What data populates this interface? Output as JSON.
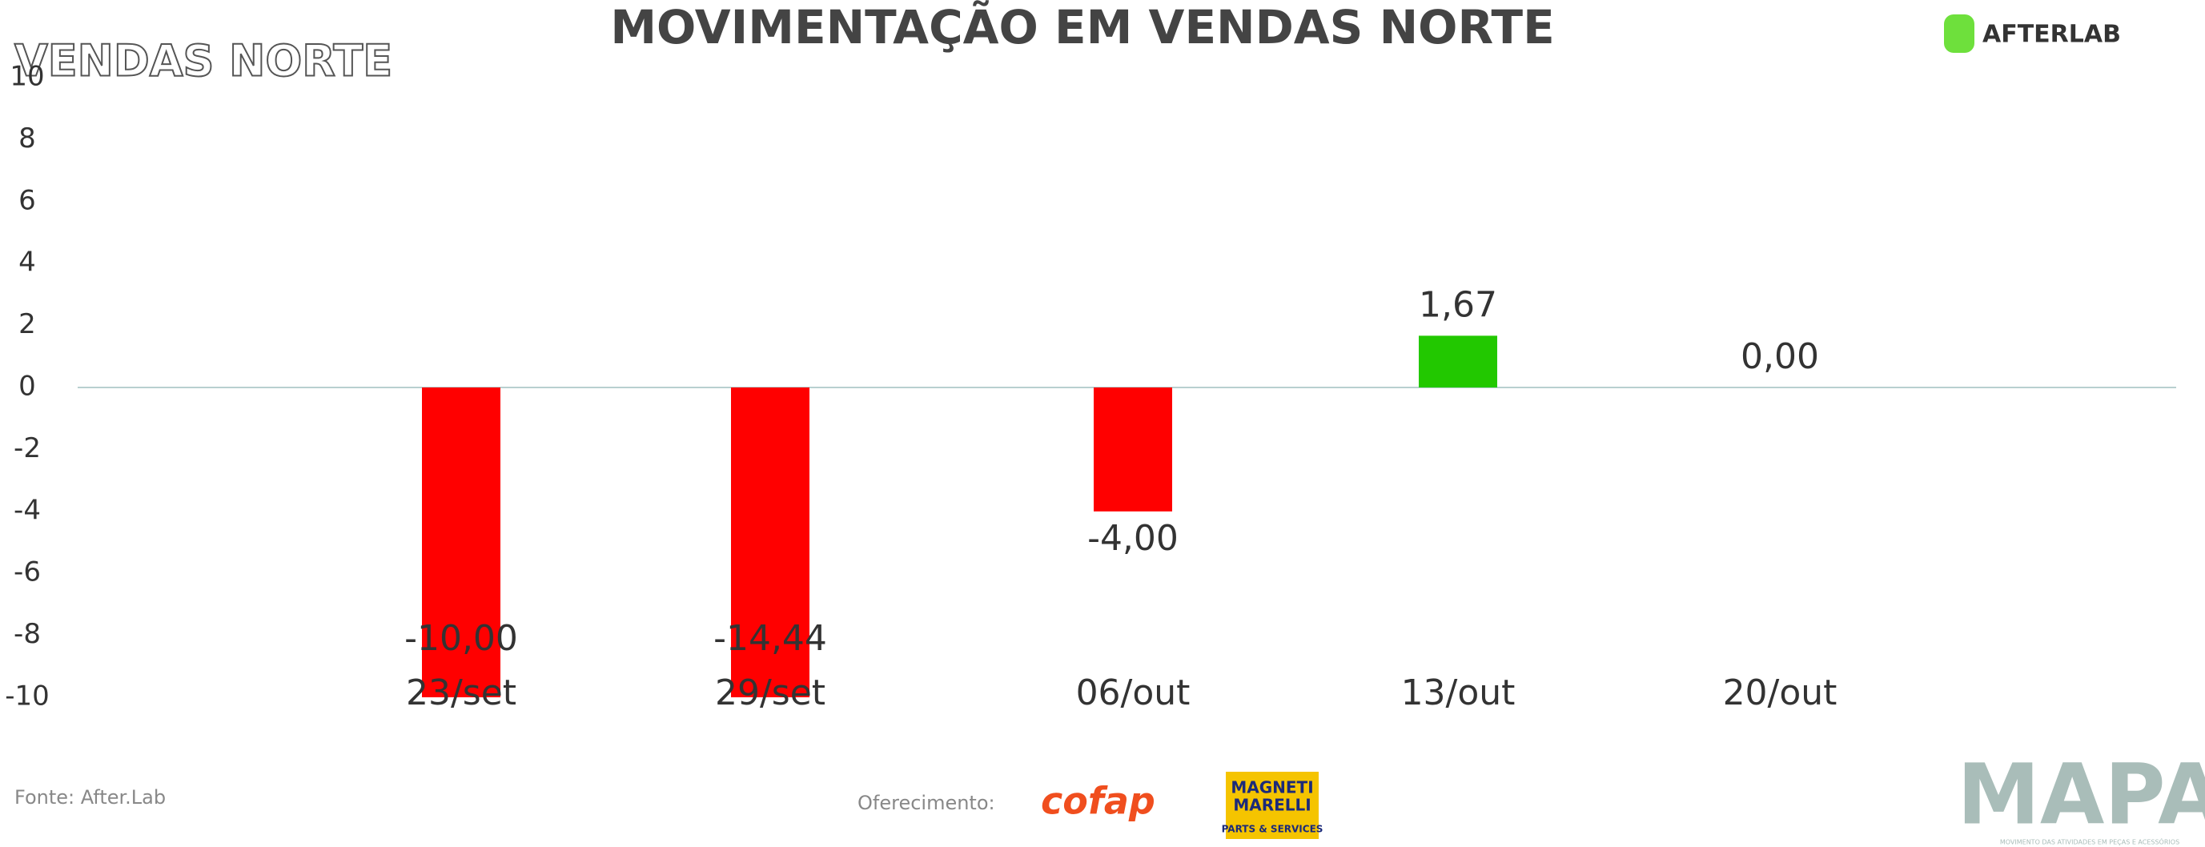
{
  "chart_data": {
    "type": "bar",
    "title": "MOVIMENTAÇÃO EM VENDAS NORTE",
    "categories": [
      "23/set",
      "29/set",
      "06/out",
      "13/out",
      "20/out"
    ],
    "values": [
      -10,
      -14.44,
      -4,
      1.67,
      0
    ],
    "value_labels": [
      "-10,00",
      "-14,44",
      "-4,00",
      "1,67",
      "0,00"
    ],
    "color_negative": "#ff0000",
    "color_positive": "#22c800",
    "ylim": [
      -10,
      10
    ],
    "yticks": [
      -10,
      -8,
      -6,
      -4,
      -2,
      0,
      2,
      4,
      6,
      8,
      10
    ]
  },
  "header": {
    "subtitle": "VENDAS NORTE",
    "brand": "AFTERLAB"
  },
  "footer": {
    "source": "Fonte: After.Lab",
    "sponsor_label": "Oferecimento:",
    "sponsor1": "cofap",
    "sponsor2_line1": "MAGNETI",
    "sponsor2_line2": "MARELLI",
    "sponsor2_tag": "PARTS & SERVICES",
    "mapa": "MAPA",
    "mapa_tagline": "MOVIMENTO DAS ATIVIDADES EM PEÇAS E ACESSÓRIOS"
  }
}
